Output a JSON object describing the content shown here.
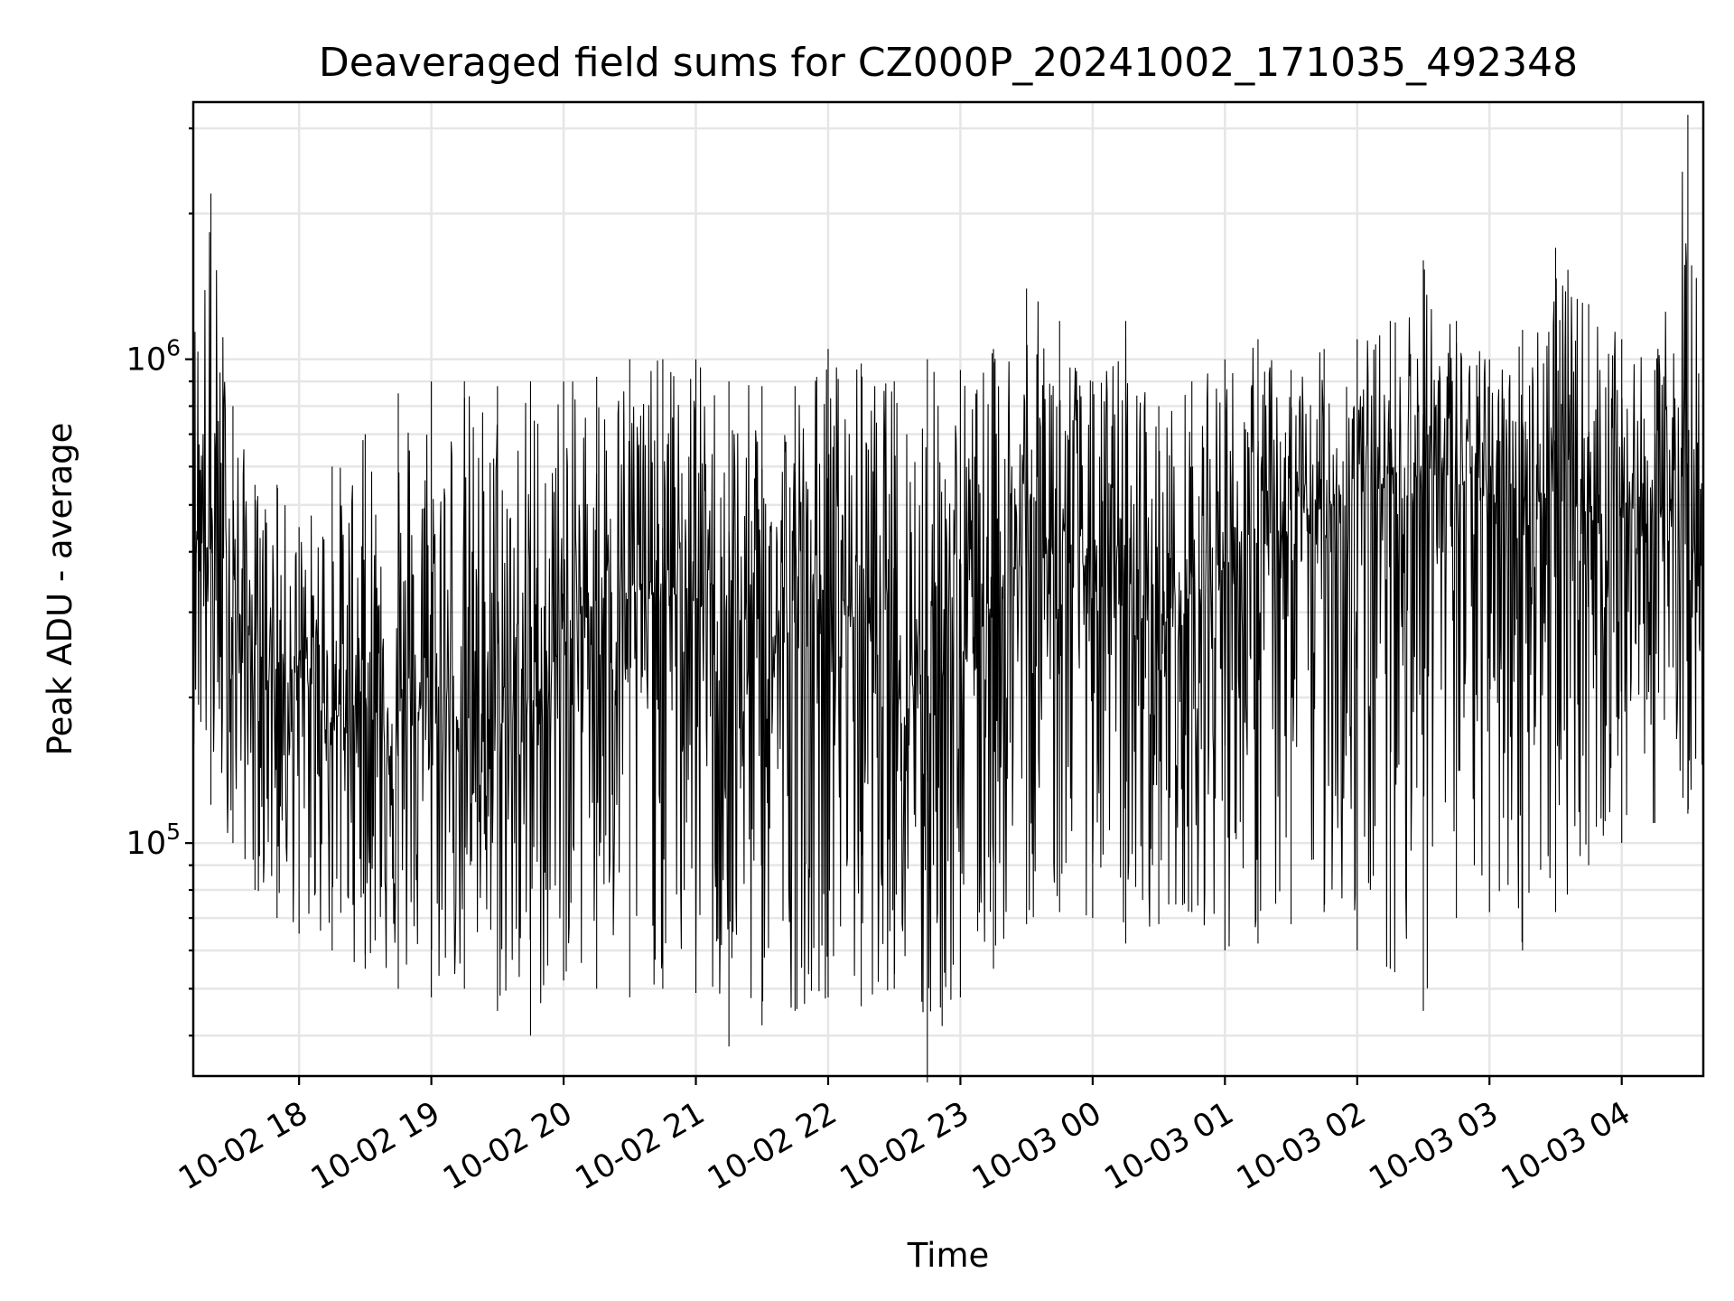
{
  "chart_data": {
    "type": "line",
    "title": "Deaveraged field sums for CZ000P_20241002_171035_492348",
    "xlabel": "Time",
    "ylabel": "Peak ADU - average",
    "yscale": "log",
    "xlim": [
      "2024-10-02 17:12",
      "2024-10-03 04:37"
    ],
    "ylim": [
      33000,
      3400000
    ],
    "x_ticks": [
      "10-02 18",
      "10-02 19",
      "10-02 20",
      "10-02 21",
      "10-02 22",
      "10-02 23",
      "10-03 00",
      "10-03 01",
      "10-03 02",
      "10-03 03",
      "10-03 04"
    ],
    "y_ticks": [
      {
        "base": "10",
        "exp": "5",
        "value": 100000
      },
      {
        "base": "10",
        "exp": "6",
        "value": 1000000
      }
    ],
    "grid": "on",
    "legend": "none",
    "series": [
      {
        "color": "#000000",
        "x": [
          "2024-10-02 17:12",
          "2024-10-02 17:20",
          "2024-10-02 17:30",
          "2024-10-02 17:40",
          "2024-10-02 17:50",
          "2024-10-02 18:00",
          "2024-10-02 18:15",
          "2024-10-02 18:30",
          "2024-10-02 18:45",
          "2024-10-02 19:00",
          "2024-10-02 19:15",
          "2024-10-02 19:30",
          "2024-10-02 19:45",
          "2024-10-02 20:00",
          "2024-10-02 20:15",
          "2024-10-02 20:30",
          "2024-10-02 20:45",
          "2024-10-02 21:00",
          "2024-10-02 21:15",
          "2024-10-02 21:30",
          "2024-10-02 21:45",
          "2024-10-02 22:00",
          "2024-10-02 22:15",
          "2024-10-02 22:30",
          "2024-10-02 22:45",
          "2024-10-02 23:00",
          "2024-10-02 23:15",
          "2024-10-02 23:30",
          "2024-10-02 23:45",
          "2024-10-03 00:00",
          "2024-10-03 00:15",
          "2024-10-03 00:30",
          "2024-10-03 00:45",
          "2024-10-03 01:00",
          "2024-10-03 01:15",
          "2024-10-03 01:30",
          "2024-10-03 01:45",
          "2024-10-03 02:00",
          "2024-10-03 02:15",
          "2024-10-03 02:30",
          "2024-10-03 02:45",
          "2024-10-03 03:00",
          "2024-10-03 03:15",
          "2024-10-03 03:30",
          "2024-10-03 03:45",
          "2024-10-03 04:00",
          "2024-10-03 04:15",
          "2024-10-03 04:30",
          "2024-10-03 04:37"
        ],
        "hi": [
          1300000,
          2200000,
          800000,
          550000,
          550000,
          450000,
          600000,
          700000,
          850000,
          900000,
          900000,
          880000,
          900000,
          900000,
          920000,
          1000000,
          1000000,
          1000000,
          900000,
          880000,
          880000,
          1050000,
          980000,
          900000,
          1000000,
          950000,
          1050000,
          1400000,
          1200000,
          900000,
          1200000,
          800000,
          900000,
          1000000,
          1100000,
          950000,
          1050000,
          1100000,
          1200000,
          1600000,
          1200000,
          1000000,
          1150000,
          1700000,
          1300000,
          1100000,
          950000,
          3200000,
          1000000
        ],
        "mid": [
          500000,
          400000,
          300000,
          260000,
          220000,
          230000,
          180000,
          200000,
          170000,
          200000,
          180000,
          180000,
          190000,
          260000,
          320000,
          330000,
          330000,
          320000,
          260000,
          250000,
          280000,
          330000,
          300000,
          240000,
          230000,
          250000,
          330000,
          380000,
          420000,
          360000,
          300000,
          280000,
          320000,
          380000,
          400000,
          430000,
          500000,
          520000,
          560000,
          600000,
          560000,
          520000,
          540000,
          520000,
          480000,
          500000,
          470000,
          550000,
          200000
        ],
        "lo": [
          160000,
          120000,
          100000,
          80000,
          70000,
          65000,
          60000,
          55000,
          50000,
          48000,
          50000,
          45000,
          40000,
          52000,
          50000,
          48000,
          50000,
          49000,
          38000,
          42000,
          45000,
          48000,
          46000,
          50000,
          32000,
          48000,
          55000,
          68000,
          72000,
          70000,
          62000,
          68000,
          72000,
          60000,
          62000,
          68000,
          72000,
          60000,
          55000,
          45000,
          70000,
          72000,
          60000,
          72000,
          90000,
          100000,
          110000,
          115000,
          140000
        ]
      }
    ]
  }
}
